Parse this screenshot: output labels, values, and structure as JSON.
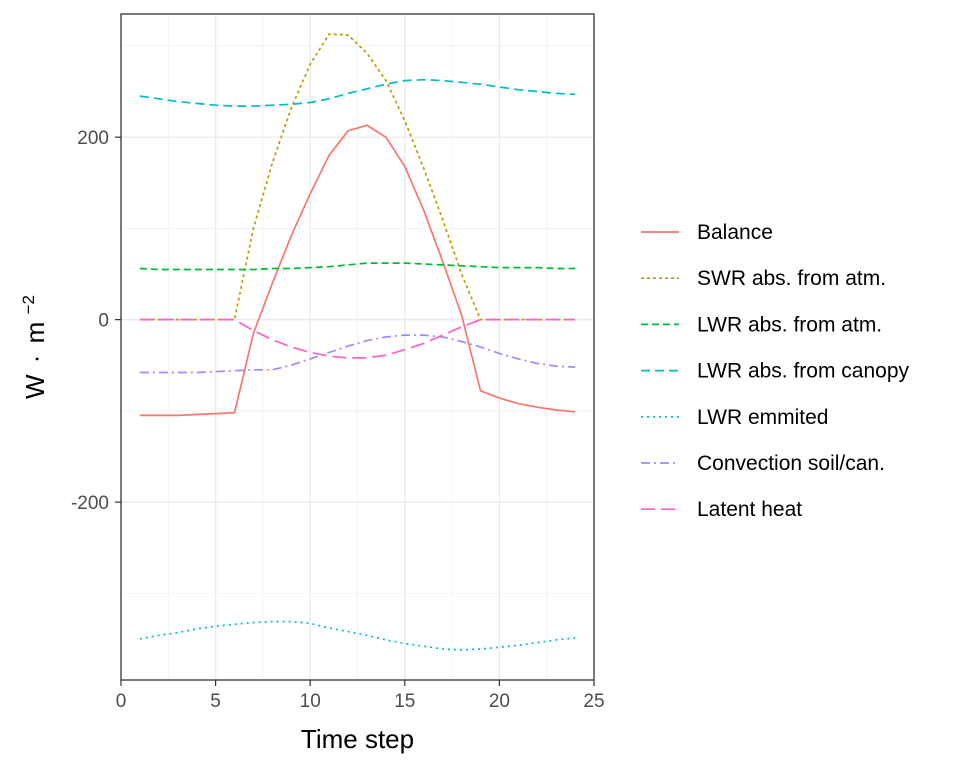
{
  "chart_data": {
    "type": "line",
    "xlabel": "Time step",
    "ylabel_main": "W",
    "ylabel_dot": "·",
    "ylabel_unit": "m",
    "ylabel_exp": "−2",
    "xlim": [
      0,
      25
    ],
    "ylim": [
      -395,
      335
    ],
    "x_ticks": [
      0,
      5,
      10,
      15,
      20,
      25
    ],
    "x_tick_labels": [
      "0",
      "5",
      "10",
      "15",
      "20",
      "25"
    ],
    "y_ticks": [
      200,
      0,
      -200
    ],
    "y_tick_labels": [
      "200",
      "0",
      "-200"
    ],
    "grid": true,
    "legend_position": "right",
    "x": [
      1,
      2,
      3,
      4,
      5,
      6,
      7,
      8,
      9,
      10,
      11,
      12,
      13,
      14,
      15,
      16,
      17,
      18,
      19,
      20,
      21,
      22,
      23,
      24
    ],
    "series": [
      {
        "name": "Balance",
        "color": "#F8766D",
        "dash": "",
        "values": [
          -105,
          -105,
          -105,
          -104,
          -103,
          -102,
          -15,
          40,
          92,
          138,
          180,
          207,
          213,
          200,
          168,
          120,
          64,
          5,
          -78,
          -86,
          -92,
          -96,
          -99,
          -101
        ]
      },
      {
        "name": "SWR abs. from atm.",
        "color": "#B79F00",
        "dash": "3,3",
        "values": [
          0,
          0,
          0,
          0,
          0,
          0,
          100,
          172,
          232,
          280,
          313,
          312,
          292,
          262,
          218,
          166,
          110,
          50,
          0,
          0,
          0,
          0,
          0,
          0
        ]
      },
      {
        "name": "LWR abs. from atm.",
        "color": "#00BA38",
        "dash": "7,4",
        "values": [
          56,
          55,
          55,
          55,
          55,
          55,
          55,
          56,
          56,
          57,
          58,
          60,
          62,
          62,
          62,
          61,
          60,
          59,
          58,
          57,
          57,
          57,
          56,
          56
        ]
      },
      {
        "name": "LWR abs. from canopy",
        "color": "#00BFC4",
        "dash": "9,5",
        "values": [
          245,
          242,
          239,
          237,
          235,
          234,
          234,
          235,
          236,
          238,
          242,
          248,
          253,
          258,
          262,
          263,
          262,
          260,
          258,
          255,
          252,
          250,
          248,
          247
        ]
      },
      {
        "name": "LWR emmited",
        "color": "#00BFC4",
        "dash": "2,4",
        "values": [
          -350,
          -346,
          -343,
          -339,
          -336,
          -334,
          -332,
          -331,
          -331,
          -333,
          -338,
          -342,
          -346,
          -351,
          -355,
          -358,
          -361,
          -362,
          -361,
          -359,
          -357,
          -354,
          -351,
          -349
        ]
      },
      {
        "name": "Convection soil/can.",
        "color": "#9590FF",
        "dash": "9,4,2,4",
        "values": [
          -58,
          -58,
          -58,
          -58,
          -57,
          -56,
          -55,
          -55,
          -50,
          -43,
          -36,
          -29,
          -23,
          -19,
          -17,
          -17,
          -19,
          -24,
          -30,
          -37,
          -43,
          -48,
          -51,
          -52
        ]
      },
      {
        "name": "Latent heat",
        "color": "#FF61C3",
        "dash": "14,6",
        "values": [
          0,
          0,
          0,
          0,
          0,
          0,
          -12,
          -22,
          -30,
          -36,
          -40,
          -42,
          -42,
          -39,
          -33,
          -26,
          -17,
          -8,
          0,
          0,
          0,
          0,
          0,
          0
        ]
      }
    ]
  }
}
